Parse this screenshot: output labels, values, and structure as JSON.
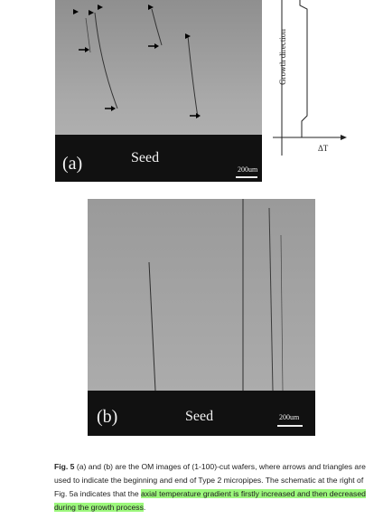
{
  "figure": {
    "panel_a": {
      "letter": "(a)",
      "seed_label": "Seed",
      "scale_label": "200um"
    },
    "panel_b": {
      "letter": "(b)",
      "seed_label": "Seed",
      "scale_label": "200um"
    },
    "schematic": {
      "y_label": "Growth direction",
      "x_label": "ΔT"
    }
  },
  "caption": {
    "label": "Fig. 5",
    "text_before": " (a) and (b) are the OM images of (1-100)-cut wafers, where arrows and triangles are used to indicate the beginning and end of Type 2 micropipes. The schematic at the right of Fig. 5a indicates that the ",
    "highlight": "axial temperature gradient is firstly increased and then decreased during the growth process",
    "text_after": "."
  }
}
